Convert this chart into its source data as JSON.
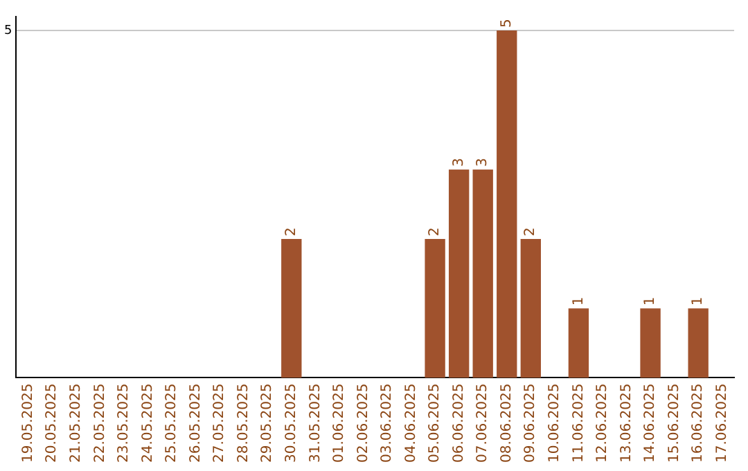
{
  "chart_data": {
    "type": "bar",
    "categories": [
      "19.05.2025",
      "20.05.2025",
      "21.05.2025",
      "22.05.2025",
      "23.05.2025",
      "24.05.2025",
      "25.05.2025",
      "26.05.2025",
      "27.05.2025",
      "28.05.2025",
      "29.05.2025",
      "30.05.2025",
      "31.05.2025",
      "01.06.2025",
      "02.06.2025",
      "03.06.2025",
      "04.06.2025",
      "05.06.2025",
      "06.06.2025",
      "07.06.2025",
      "08.06.2025",
      "09.06.2025",
      "10.06.2025",
      "11.06.2025",
      "12.06.2025",
      "13.06.2025",
      "14.06.2025",
      "15.06.2025",
      "16.06.2025",
      "17.06.2025"
    ],
    "values": [
      0,
      0,
      0,
      0,
      0,
      0,
      0,
      0,
      0,
      0,
      0,
      2,
      0,
      0,
      0,
      0,
      0,
      2,
      3,
      3,
      5,
      2,
      0,
      1,
      0,
      0,
      1,
      0,
      1,
      0
    ],
    "value_labels": [
      null,
      null,
      null,
      null,
      null,
      null,
      null,
      null,
      null,
      null,
      null,
      "2",
      null,
      null,
      null,
      null,
      null,
      "2",
      "3",
      "3",
      "5",
      "2",
      null,
      "1",
      null,
      null,
      "1",
      null,
      "1",
      null
    ],
    "color": "#a0522d",
    "ylim": [
      0,
      5.2
    ],
    "yticks": [
      5
    ],
    "grid": "y"
  }
}
